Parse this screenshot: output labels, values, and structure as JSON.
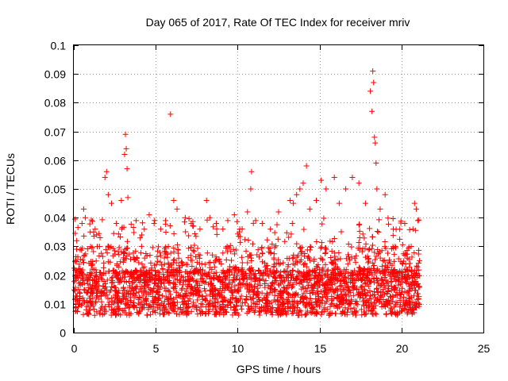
{
  "chart_data": {
    "type": "scatter",
    "title": "Day 065 of 2017, Rate Of TEC Index for receiver mriv",
    "xlabel": "GPS time / hours",
    "ylabel": "ROTI / TECUs",
    "xlim": [
      0,
      25
    ],
    "ylim": [
      0,
      0.1
    ],
    "xticks": [
      "0",
      "5",
      "10",
      "15",
      "20",
      "25"
    ],
    "yticks": [
      "0",
      "0.01",
      "0.02",
      "0.03",
      "0.04",
      "0.05",
      "0.06",
      "0.07",
      "0.08",
      "0.09",
      "0.1"
    ],
    "grid": true,
    "marker": "+",
    "color": "#ff0000",
    "data_x_range": [
      0,
      21.1
    ],
    "typical_band": [
      0.006,
      0.03
    ],
    "series": [
      {
        "points": [
          [
            0.1,
            0.025
          ],
          [
            0.3,
            0.022
          ],
          [
            0.5,
            0.038
          ],
          [
            0.6,
            0.043
          ],
          [
            0.7,
            0.04
          ],
          [
            1.0,
            0.035
          ],
          [
            1.3,
            0.036
          ],
          [
            1.6,
            0.033
          ],
          [
            1.9,
            0.054
          ],
          [
            2.0,
            0.056
          ],
          [
            2.1,
            0.048
          ],
          [
            2.3,
            0.045
          ],
          [
            2.6,
            0.038
          ],
          [
            2.9,
            0.046
          ],
          [
            3.1,
            0.062
          ],
          [
            3.15,
            0.069
          ],
          [
            3.2,
            0.064
          ],
          [
            3.25,
            0.057
          ],
          [
            3.3,
            0.047
          ],
          [
            3.8,
            0.039
          ],
          [
            4.3,
            0.036
          ],
          [
            4.6,
            0.041
          ],
          [
            4.9,
            0.038
          ],
          [
            5.3,
            0.036
          ],
          [
            5.6,
            0.039
          ],
          [
            5.9,
            0.076
          ],
          [
            6.1,
            0.046
          ],
          [
            6.3,
            0.043
          ],
          [
            6.8,
            0.04
          ],
          [
            7.3,
            0.037
          ],
          [
            7.7,
            0.036
          ],
          [
            8.1,
            0.046
          ],
          [
            8.3,
            0.04
          ],
          [
            8.7,
            0.038
          ],
          [
            9.1,
            0.036
          ],
          [
            9.4,
            0.039
          ],
          [
            9.8,
            0.041
          ],
          [
            10.1,
            0.035
          ],
          [
            10.6,
            0.042
          ],
          [
            10.8,
            0.05
          ],
          [
            10.85,
            0.056
          ],
          [
            11.1,
            0.039
          ],
          [
            11.5,
            0.038
          ],
          [
            12.0,
            0.036
          ],
          [
            12.5,
            0.042
          ],
          [
            13.2,
            0.046
          ],
          [
            13.4,
            0.045
          ],
          [
            13.6,
            0.048
          ],
          [
            13.8,
            0.05
          ],
          [
            14.0,
            0.052
          ],
          [
            14.2,
            0.058
          ],
          [
            14.4,
            0.043
          ],
          [
            14.8,
            0.046
          ],
          [
            15.1,
            0.053
          ],
          [
            15.4,
            0.05
          ],
          [
            15.9,
            0.054
          ],
          [
            16.2,
            0.045
          ],
          [
            16.6,
            0.05
          ],
          [
            17.0,
            0.054
          ],
          [
            17.4,
            0.052
          ],
          [
            17.8,
            0.045
          ],
          [
            18.1,
            0.084
          ],
          [
            18.2,
            0.077
          ],
          [
            18.25,
            0.091
          ],
          [
            18.3,
            0.087
          ],
          [
            18.35,
            0.068
          ],
          [
            18.4,
            0.066
          ],
          [
            18.45,
            0.059
          ],
          [
            18.5,
            0.05
          ],
          [
            18.7,
            0.043
          ],
          [
            19.0,
            0.048
          ],
          [
            19.5,
            0.036
          ],
          [
            20.2,
            0.038
          ],
          [
            20.7,
            0.036
          ],
          [
            20.8,
            0.045
          ],
          [
            20.9,
            0.043
          ],
          [
            21.0,
            0.039
          ]
        ]
      }
    ]
  }
}
